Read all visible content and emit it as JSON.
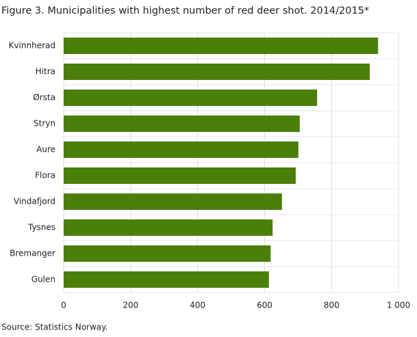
{
  "chart_data": {
    "type": "bar",
    "orientation": "horizontal",
    "title": "Figure 3. Municipalities with highest number of red deer shot. 2014/2015*",
    "source": "Source: Statistics Norway.",
    "categories": [
      "Kvinnherad",
      "Hitra",
      "Ørsta",
      "Stryn",
      "Aure",
      "Flora",
      "Vindafjord",
      "Tysnes",
      "Bremanger",
      "Gulen"
    ],
    "values": [
      939,
      914,
      757,
      705,
      701,
      693,
      652,
      624,
      618,
      613
    ],
    "color": "#4a7f0a",
    "xlim": [
      0,
      1000
    ],
    "xticks": [
      0,
      200,
      400,
      600,
      800,
      {
        "value": 1000,
        "label": "1 000"
      }
    ],
    "grid": true
  }
}
